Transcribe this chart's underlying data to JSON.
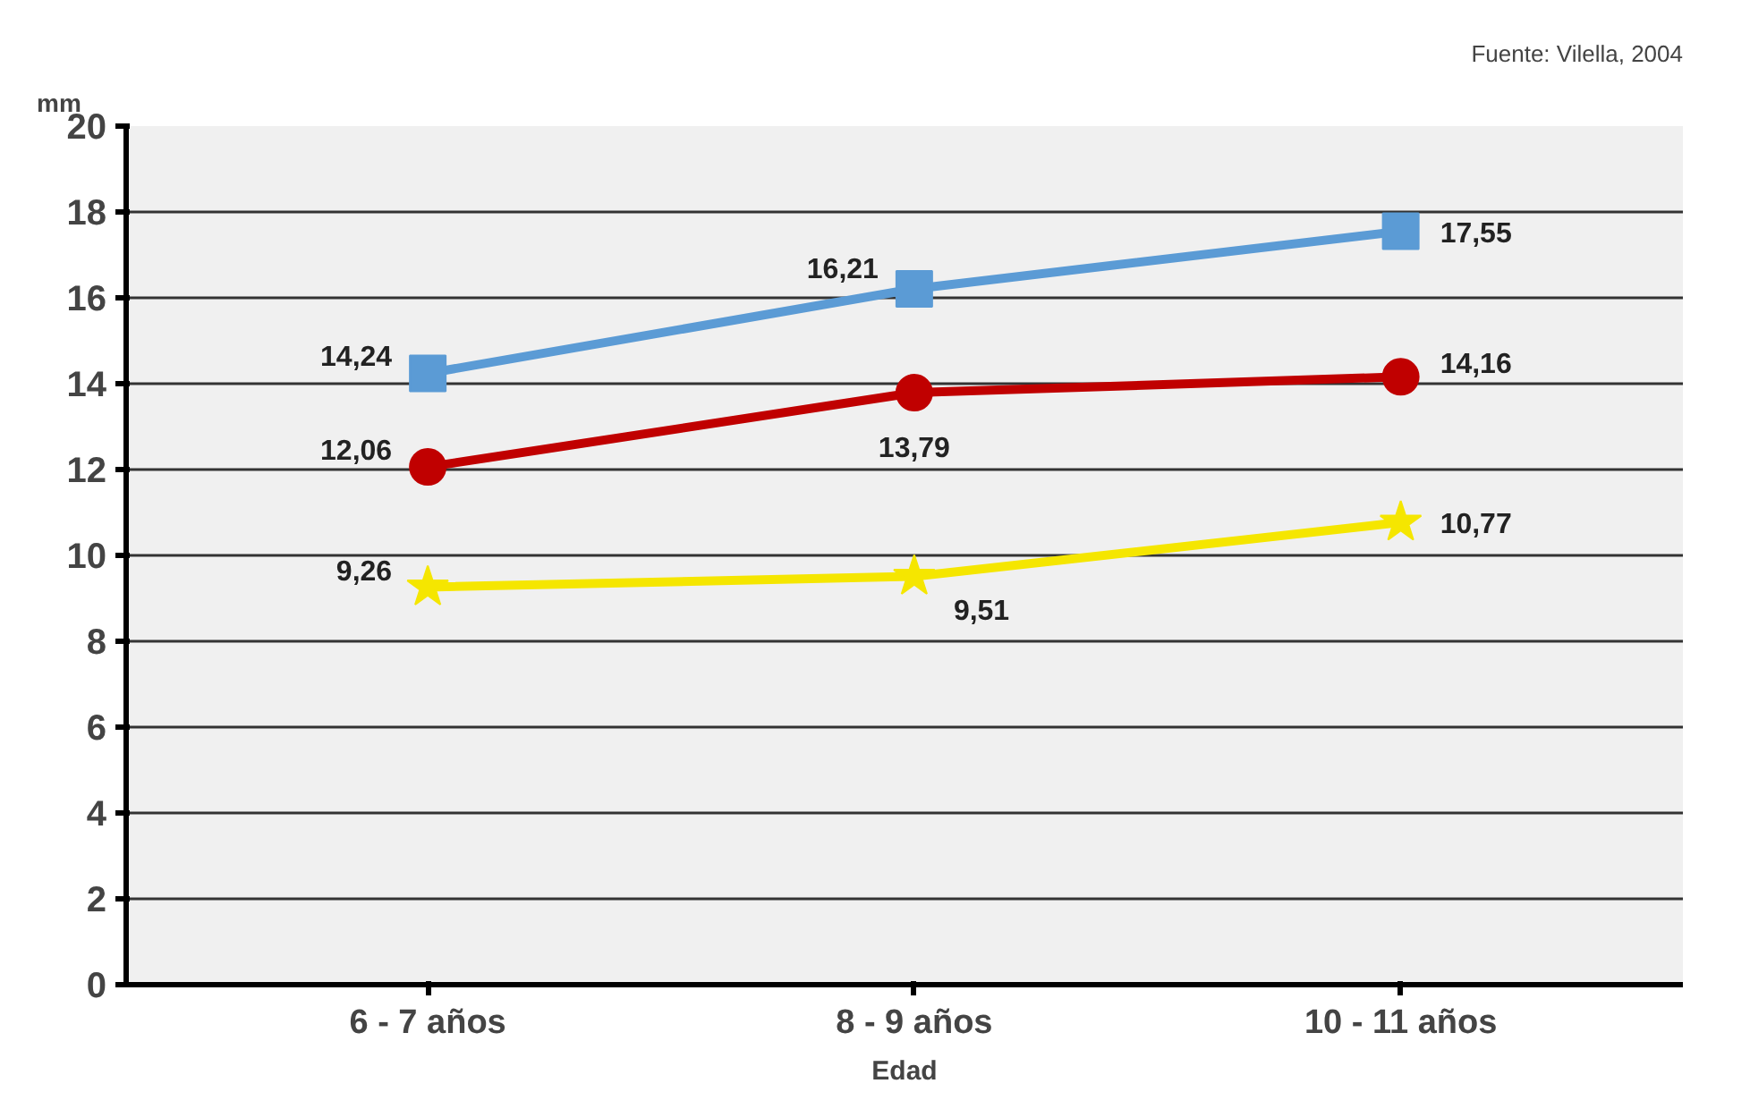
{
  "chart_data": {
    "type": "line",
    "ylabel": "mm",
    "xlabel": "Edad",
    "annotations": [
      "Fuente: Vilella, 2004"
    ],
    "categories": [
      "6 - 7 años",
      "8 - 9 años",
      "10 - 11 años"
    ],
    "ylim": [
      0,
      20
    ],
    "yticks": [
      0,
      2,
      4,
      6,
      8,
      10,
      12,
      14,
      16,
      18,
      20
    ],
    "grid": "y",
    "series": [
      {
        "color": "#5b9bd5",
        "marker": "square",
        "values": [
          14.24,
          16.21,
          17.55
        ],
        "value_labels": [
          "14,24",
          "16,21",
          "17,55"
        ]
      },
      {
        "color": "#c00000",
        "marker": "circle",
        "values": [
          12.06,
          13.79,
          14.16
        ],
        "value_labels": [
          "12,06",
          "13,79",
          "14,16"
        ]
      },
      {
        "color": "#f5e600",
        "marker": "star",
        "values": [
          9.26,
          9.51,
          10.77
        ],
        "value_labels": [
          "9,26",
          "9,51",
          "10,77"
        ]
      }
    ]
  }
}
